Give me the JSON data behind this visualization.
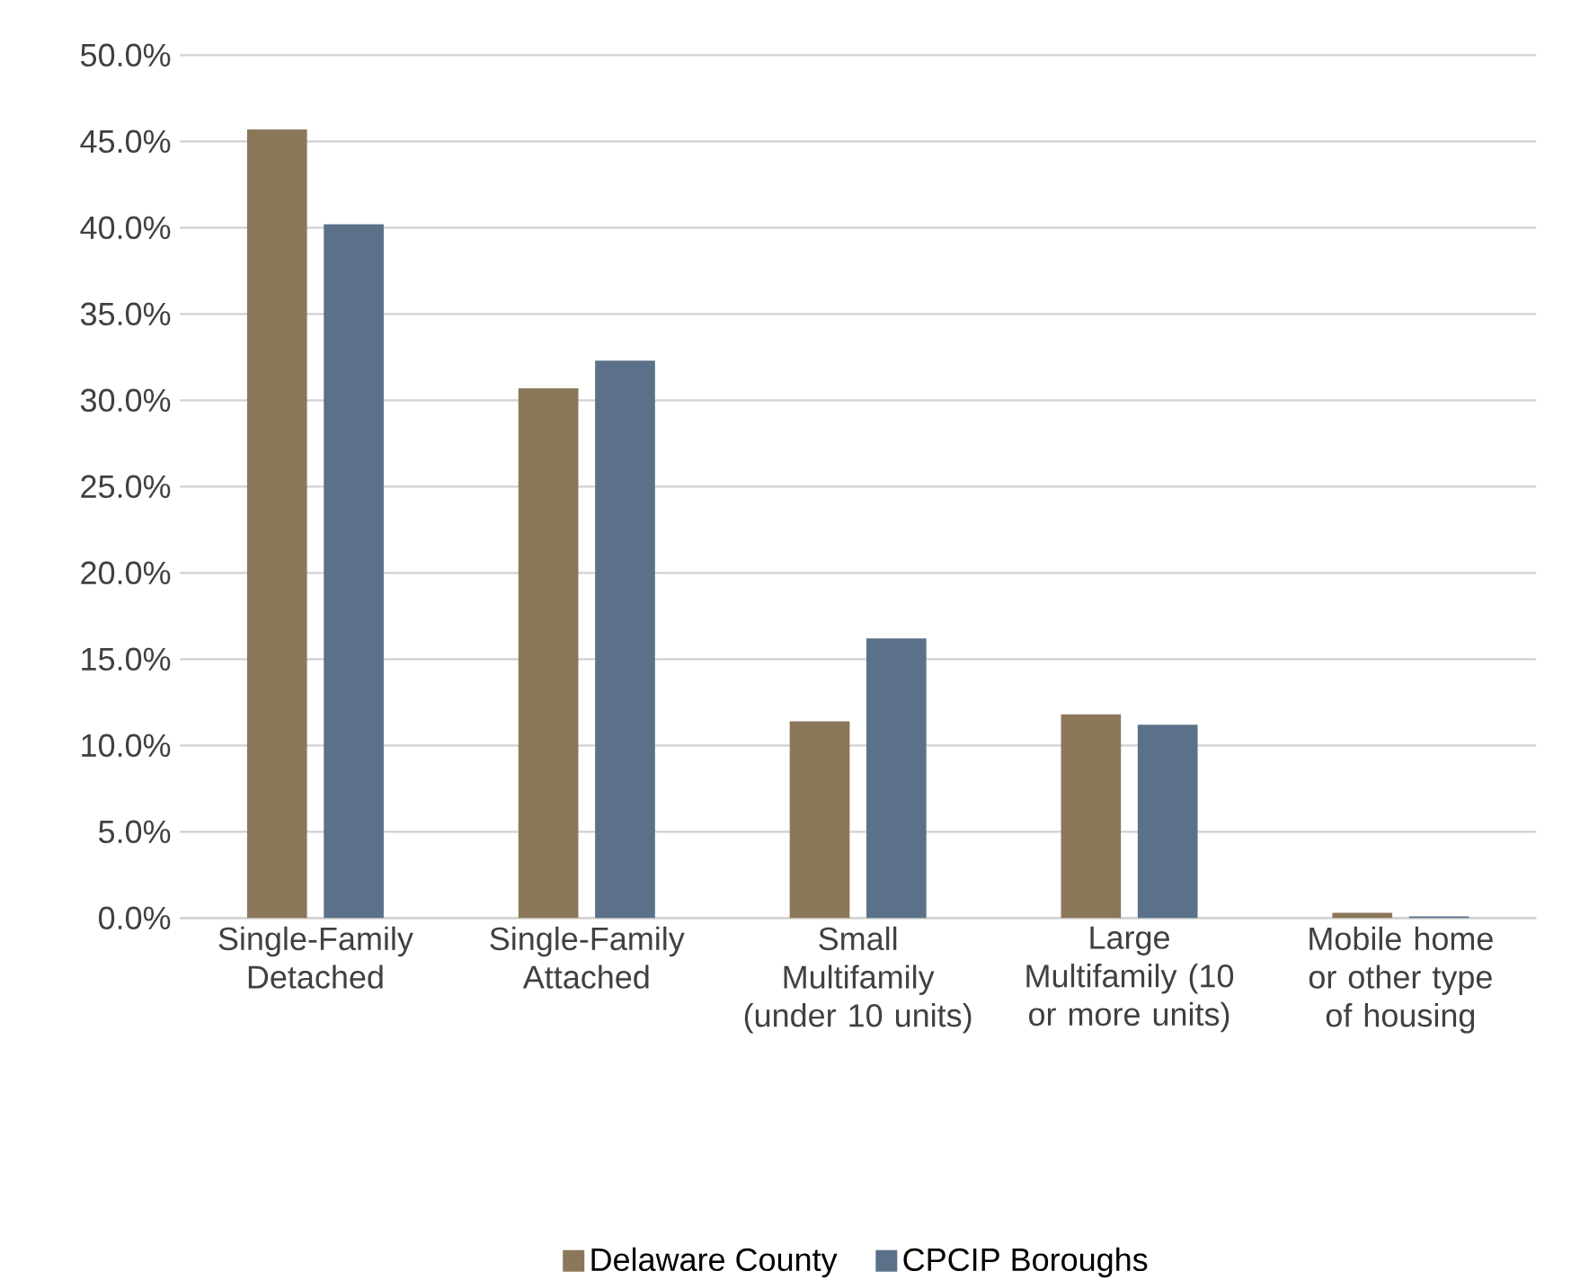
{
  "chart_data": {
    "type": "bar",
    "categories": [
      "Single-Family Detached",
      "Single-Family Attached",
      "Small Multifamily (under 10 units)",
      "Large Multifamily (10 or more units)",
      "Mobile home or other type of housing"
    ],
    "series": [
      {
        "name": "Delaware County",
        "color": "#8b7759",
        "values": [
          45.7,
          30.7,
          11.4,
          11.8,
          0.3
        ]
      },
      {
        "name": "CPCIP Boroughs",
        "color": "#5a7189",
        "values": [
          40.2,
          32.3,
          16.2,
          11.2,
          0.1
        ]
      }
    ],
    "ylim": [
      0,
      50
    ],
    "yticks": [
      {
        "value": 0,
        "label": "0.0%"
      },
      {
        "value": 5,
        "label": "5.0%"
      },
      {
        "value": 10,
        "label": "10.0%"
      },
      {
        "value": 15,
        "label": "15.0%"
      },
      {
        "value": 20,
        "label": "20.0%"
      },
      {
        "value": 25,
        "label": "25.0%"
      },
      {
        "value": 30,
        "label": "30.0%"
      },
      {
        "value": 35,
        "label": "35.0%"
      },
      {
        "value": 40,
        "label": "40.0%"
      },
      {
        "value": 45,
        "label": "45.0%"
      },
      {
        "value": 50,
        "label": "50.0%"
      }
    ],
    "grid": "y",
    "legend": "bottom"
  }
}
